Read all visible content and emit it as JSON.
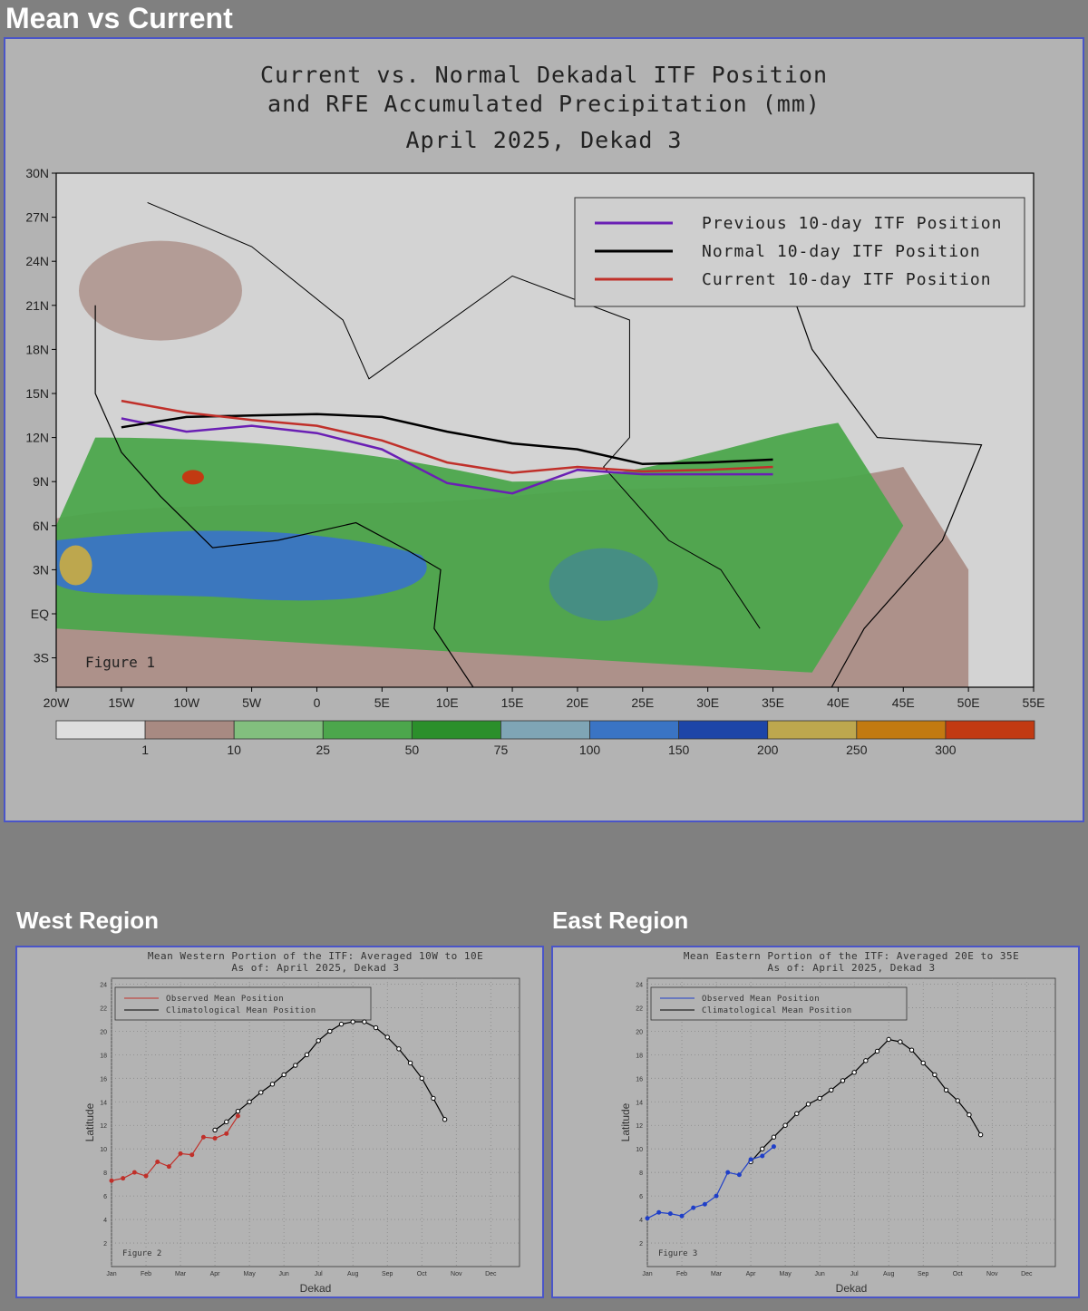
{
  "sections": {
    "main_title": "Mean vs Current",
    "west_title": "West Region",
    "east_title": "East Region"
  },
  "colors": {
    "previous_itf": "#6a1fb4",
    "normal_itf": "#000000",
    "current_itf": "#c0302a",
    "west_observed": "#c0302a",
    "east_observed": "#1f3fc8",
    "panel_border": "#4a55c8",
    "page_background": "#808080"
  },
  "chart_data": [
    {
      "type": "map",
      "title_lines": [
        "Current vs. Normal Dekadal ITF Position",
        "and RFE Accumulated Precipitation (mm)",
        "April 2025, Dekad 3"
      ],
      "annotation": "Figure 1",
      "x_ticks": [
        "20W",
        "15W",
        "10W",
        "5W",
        "0",
        "5E",
        "10E",
        "15E",
        "20E",
        "25E",
        "30E",
        "35E",
        "40E",
        "45E",
        "50E",
        "55E"
      ],
      "y_ticks": [
        "30N",
        "27N",
        "24N",
        "21N",
        "18N",
        "15N",
        "12N",
        "9N",
        "6N",
        "3N",
        "EQ",
        "3S"
      ],
      "xlim": [
        -20,
        55
      ],
      "ylim": [
        -5,
        30
      ],
      "legend_placement": "top-right",
      "legend": [
        {
          "label": "Previous 10-day ITF Position",
          "color": "#6a1fb4"
        },
        {
          "label": "Normal 10-day ITF Position",
          "color": "#000000"
        },
        {
          "label": "Current 10-day ITF Position",
          "color": "#c0302a"
        }
      ],
      "series": [
        {
          "name": "Previous 10-day ITF Position",
          "lon": [
            -15,
            -10,
            -5,
            0,
            5,
            10,
            15,
            20,
            25,
            30,
            35
          ],
          "lat": [
            13.3,
            12.4,
            12.8,
            12.3,
            11.2,
            8.9,
            8.2,
            9.8,
            9.5,
            9.5,
            9.5
          ]
        },
        {
          "name": "Normal 10-day ITF Position",
          "lon": [
            -15,
            -10,
            -5,
            0,
            5,
            10,
            15,
            20,
            25,
            30,
            35
          ],
          "lat": [
            12.7,
            13.4,
            13.5,
            13.6,
            13.4,
            12.4,
            11.6,
            11.2,
            10.2,
            10.3,
            10.5
          ]
        },
        {
          "name": "Current 10-day ITF Position",
          "lon": [
            -15,
            -10,
            -5,
            0,
            5,
            10,
            15,
            20,
            25,
            30,
            35
          ],
          "lat": [
            14.5,
            13.7,
            13.2,
            12.8,
            11.8,
            10.3,
            9.6,
            10.0,
            9.7,
            9.8,
            10.0
          ]
        }
      ],
      "colorbar": {
        "labels": [
          "1",
          "10",
          "25",
          "50",
          "75",
          "100",
          "150",
          "200",
          "250",
          "300"
        ],
        "colors": [
          "#dedede",
          "#a88a82",
          "#82bf7e",
          "#4ca64c",
          "#2b8f2b",
          "#7fa5b5",
          "#3a74c4",
          "#1d45a8",
          "#bda74e",
          "#c27a11",
          "#c23a12"
        ]
      }
    },
    {
      "type": "line",
      "title_lines": [
        "Mean Western Portion of the ITF: Averaged 10W to 10E",
        "As of: April 2025, Dekad 3"
      ],
      "xlabel": "Dekad",
      "ylabel": "Latitude",
      "annotation": "Figure 2",
      "x_tick_labels": [
        "Jan",
        "Feb",
        "Mar",
        "Apr",
        "May",
        "Jun",
        "Jul",
        "Aug",
        "Sep",
        "Oct",
        "Nov",
        "Dec"
      ],
      "y_ticks": [
        "2",
        "4",
        "6",
        "8",
        "10",
        "12",
        "14",
        "16",
        "18",
        "20",
        "22",
        "24"
      ],
      "ylim": [
        0,
        24.5
      ],
      "xlim": [
        1,
        36.5
      ],
      "legend_placement": "top-left",
      "legend": [
        {
          "label": "Observed Mean Position",
          "color": "#c0302a"
        },
        {
          "label": "Climatological Mean Position",
          "color": "#000000"
        }
      ],
      "series": [
        {
          "name": "Observed Mean Position",
          "x": [
            1,
            2,
            3,
            4,
            5,
            6,
            7,
            8,
            9,
            10,
            11,
            12
          ],
          "y": [
            7.3,
            7.5,
            8.0,
            7.7,
            8.9,
            8.5,
            9.6,
            9.5,
            11.0,
            10.9,
            11.3,
            12.8
          ]
        },
        {
          "name": "Climatological Mean Position",
          "x": [
            10,
            11,
            12,
            13,
            14,
            15,
            16,
            17,
            18,
            19,
            20,
            21,
            22,
            23,
            24,
            25,
            26,
            27,
            28,
            29,
            30
          ],
          "y": [
            11.6,
            12.3,
            13.2,
            14.0,
            14.8,
            15.5,
            16.3,
            17.1,
            18.0,
            19.2,
            20.0,
            20.6,
            20.8,
            20.8,
            20.3,
            19.5,
            18.5,
            17.3,
            16.0,
            14.3,
            12.5
          ]
        }
      ]
    },
    {
      "type": "line",
      "title_lines": [
        "Mean Eastern Portion of the ITF: Averaged 20E to 35E",
        "As of: April 2025, Dekad 3"
      ],
      "xlabel": "Dekad",
      "ylabel": "Latitude",
      "annotation": "Figure 3",
      "x_tick_labels": [
        "Jan",
        "Feb",
        "Mar",
        "Apr",
        "May",
        "Jun",
        "Jul",
        "Aug",
        "Sep",
        "Oct",
        "Nov",
        "Dec"
      ],
      "y_ticks": [
        "2",
        "4",
        "6",
        "8",
        "10",
        "12",
        "14",
        "16",
        "18",
        "20",
        "22",
        "24"
      ],
      "ylim": [
        0,
        24.5
      ],
      "xlim": [
        1,
        36.5
      ],
      "legend_placement": "top-left",
      "legend": [
        {
          "label": "Observed Mean Position",
          "color": "#1f3fc8"
        },
        {
          "label": "Climatological Mean Position",
          "color": "#000000"
        }
      ],
      "series": [
        {
          "name": "Observed Mean Position",
          "x": [
            1,
            2,
            3,
            4,
            5,
            6,
            7,
            8,
            9,
            10,
            11,
            12
          ],
          "y": [
            4.1,
            4.6,
            4.5,
            4.3,
            5.0,
            5.3,
            6.0,
            8.0,
            7.8,
            9.1,
            9.4,
            10.2
          ]
        },
        {
          "name": "Climatological Mean Position",
          "x": [
            10,
            11,
            12,
            13,
            14,
            15,
            16,
            17,
            18,
            19,
            20,
            21,
            22,
            23,
            24,
            25,
            26,
            27,
            28,
            29,
            30
          ],
          "y": [
            8.9,
            10.0,
            11.0,
            12.0,
            13.0,
            13.8,
            14.3,
            15.0,
            15.8,
            16.5,
            17.5,
            18.3,
            19.3,
            19.1,
            18.4,
            17.3,
            16.3,
            15.0,
            14.1,
            12.9,
            11.2
          ]
        }
      ]
    }
  ]
}
